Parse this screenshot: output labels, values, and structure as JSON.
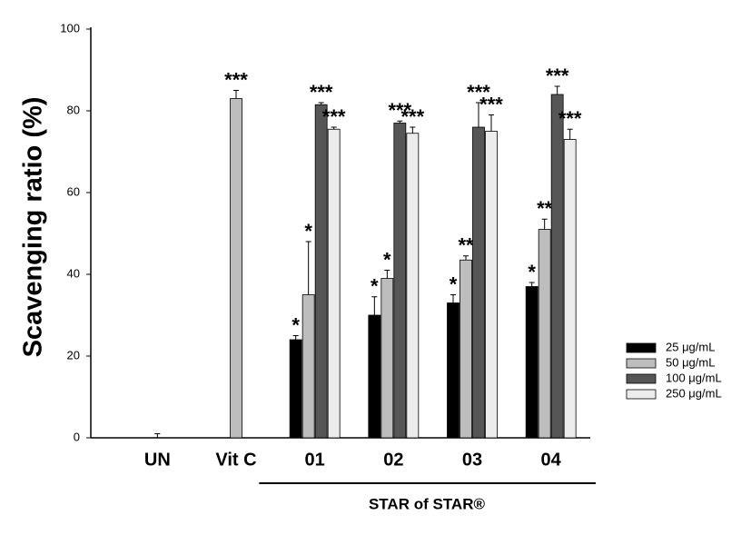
{
  "chart_data": {
    "type": "bar",
    "y_label": "Scavenging ratio (%)",
    "categories": [
      "UN",
      "Vit C",
      "01",
      "02",
      "03",
      "04"
    ],
    "group_label": "STAR of STAR®",
    "series": [
      {
        "name": "25 μg/mL",
        "color": "#000000",
        "values": [
          0,
          null,
          24,
          30,
          33,
          37
        ],
        "errors": [
          1,
          null,
          1,
          4.5,
          2,
          1
        ],
        "significance": [
          null,
          null,
          "*",
          "*",
          "*",
          "*"
        ]
      },
      {
        "name": "50 μg/mL",
        "color": "#bdbdbd",
        "values": [
          null,
          83,
          35,
          39,
          43.5,
          51
        ],
        "errors": [
          null,
          2,
          13,
          2,
          1,
          2.5
        ],
        "significance": [
          null,
          "***",
          "*",
          "*",
          "**",
          "**"
        ]
      },
      {
        "name": "100 μg/mL",
        "color": "#565656",
        "values": [
          null,
          null,
          81.5,
          77,
          76,
          84
        ],
        "errors": [
          null,
          null,
          0.5,
          0.5,
          6,
          2
        ],
        "significance": [
          null,
          null,
          "***",
          "***",
          "***",
          "***"
        ]
      },
      {
        "name": "250 μg/mL",
        "color": "#ececec",
        "values": [
          null,
          null,
          75.5,
          74.5,
          75,
          73
        ],
        "errors": [
          null,
          null,
          0.5,
          1.5,
          4,
          2.5
        ],
        "significance": [
          null,
          null,
          "***",
          "***",
          "***",
          "***"
        ]
      }
    ],
    "ylim": [
      0,
      100
    ],
    "yticks": [
      0,
      20,
      40,
      60,
      80,
      100
    ]
  }
}
